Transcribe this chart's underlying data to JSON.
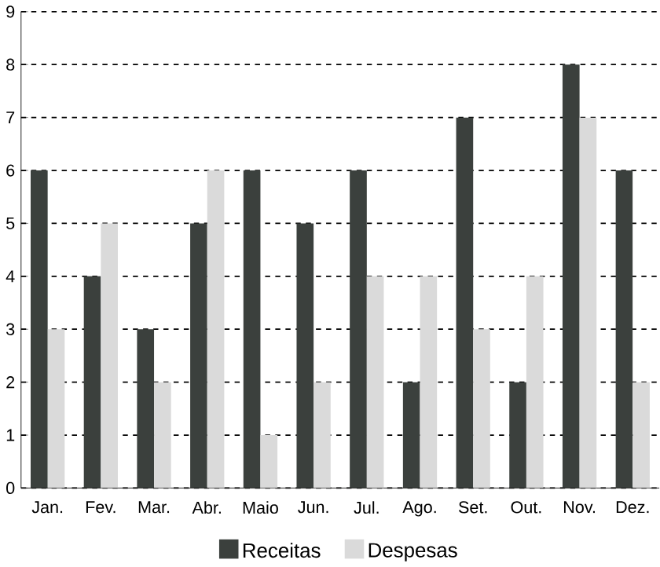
{
  "chart_data": {
    "type": "bar",
    "categories": [
      "Jan.",
      "Fev.",
      "Mar.",
      "Abr.",
      "Maio",
      "Jun.",
      "Jul.",
      "Ago.",
      "Set.",
      "Out.",
      "Nov.",
      "Dez."
    ],
    "series": [
      {
        "name": "Receitas",
        "color": "#3b403d",
        "values": [
          6,
          4,
          3,
          5,
          6,
          5,
          6,
          2,
          7,
          2,
          8,
          6
        ]
      },
      {
        "name": "Despesas",
        "color": "#dadada",
        "values": [
          3,
          5,
          2,
          6,
          1,
          2,
          4,
          4,
          3,
          4,
          7,
          2
        ]
      }
    ],
    "ylim": [
      0,
      9
    ],
    "yticks": [
      0,
      1,
      2,
      3,
      4,
      5,
      6,
      7,
      8,
      9
    ],
    "grid": "y",
    "legend": "bottom"
  }
}
